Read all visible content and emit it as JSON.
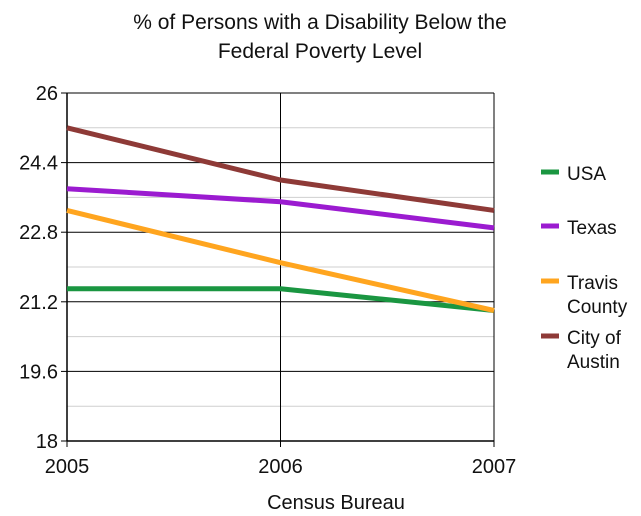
{
  "chart_data": {
    "type": "line",
    "title_lines": [
      "% of Persons with a Disability Below the",
      "Federal Poverty Level"
    ],
    "xlabel": "Census Bureau",
    "ylabel": "",
    "x": [
      2005,
      2006,
      2007
    ],
    "xlim": [
      2005,
      2007
    ],
    "ylim": [
      18,
      26
    ],
    "y_ticks": [
      18,
      19.6,
      21.2,
      22.8,
      24.4,
      26
    ],
    "y_tick_labels": [
      "18",
      "19.6",
      "21.2",
      "22.8",
      "24.4",
      "26"
    ],
    "x_tick_labels": [
      "2005",
      "2006",
      "2007"
    ],
    "grid": true,
    "legend_position": "right",
    "series": [
      {
        "name": "USA",
        "legend_lines": [
          "USA"
        ],
        "color": "#1a9641",
        "values": [
          21.5,
          21.5,
          21.0
        ]
      },
      {
        "name": "Texas",
        "legend_lines": [
          "Texas"
        ],
        "color": "#9b1bd0",
        "values": [
          23.8,
          23.5,
          22.9
        ]
      },
      {
        "name": "Travis County",
        "legend_lines": [
          "Travis",
          "County"
        ],
        "color": "#ffa51f",
        "values": [
          23.3,
          22.1,
          21.0
        ]
      },
      {
        "name": "City of Austin",
        "legend_lines": [
          "City of",
          "Austin"
        ],
        "color": "#8e3a37",
        "values": [
          25.2,
          24.0,
          23.3
        ]
      }
    ]
  }
}
